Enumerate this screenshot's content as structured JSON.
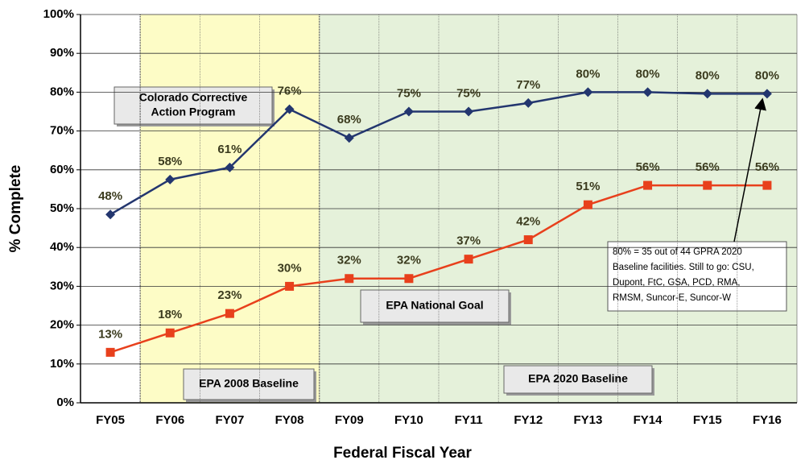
{
  "chart_data": {
    "type": "line",
    "x_label": "Federal Fiscal Year",
    "y_label": "% Complete",
    "categories": [
      "FY05",
      "FY06",
      "FY07",
      "FY08",
      "FY09",
      "FY10",
      "FY11",
      "FY12",
      "FY13",
      "FY14",
      "FY15",
      "FY16"
    ],
    "series": [
      {
        "name": "Colorado Corrective Action Program",
        "color": "#23366f",
        "values": [
          48.5,
          57.5,
          60.6,
          75.6,
          68.2,
          75,
          75,
          77.2,
          80,
          80,
          79.6,
          79.6
        ],
        "value_labels": [
          "48%",
          "58%",
          "61%",
          "76%",
          "68%",
          "75%",
          "75%",
          "77%",
          "80%",
          "80%",
          "80%",
          "80%"
        ]
      },
      {
        "name": "EPA National Goal",
        "color": "#e8401c",
        "values": [
          13,
          18,
          23,
          30,
          32,
          32,
          37,
          42,
          51,
          56,
          56,
          56
        ],
        "value_labels": [
          "13%",
          "18%",
          "23%",
          "30%",
          "32%",
          "32%",
          "37%",
          "42%",
          "51%",
          "56%",
          "56%",
          "56%"
        ]
      }
    ],
    "ylim": [
      0,
      100
    ],
    "yticks": [
      {
        "value": 0,
        "label": "0%"
      },
      {
        "value": 10,
        "label": "10%"
      },
      {
        "value": 20,
        "label": "20%"
      },
      {
        "value": 30,
        "label": "30%"
      },
      {
        "value": 40,
        "label": "40%"
      },
      {
        "value": 50,
        "label": "50%"
      },
      {
        "value": 60,
        "label": "60%"
      },
      {
        "value": 70,
        "label": "70%"
      },
      {
        "value": 80,
        "label": "80%"
      },
      {
        "value": 90,
        "label": "90%"
      },
      {
        "value": 100,
        "label": "100%"
      }
    ],
    "grid": true,
    "annotations": {
      "program": [
        "Colorado Corrective",
        "Action Program"
      ],
      "goal": "EPA National Goal",
      "baseline_2008": "EPA 2008 Baseline",
      "baseline_2020": "EPA 2020 Baseline",
      "note": [
        "80% = 35 out of 44 GPRA 2020",
        "Baseline facilities. Still to go:  CSU,",
        "Dupont, FtC, GSA, PCD, RMA,",
        "RMSM, Suncor-E, Suncor-W"
      ]
    }
  }
}
